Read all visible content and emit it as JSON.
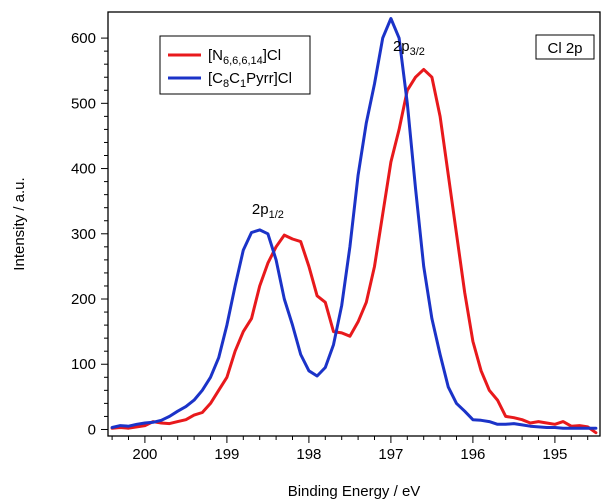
{
  "chart_data": {
    "type": "line",
    "xlabel": "Binding Energy / eV",
    "ylabel": "Intensity / a.u.",
    "xlim": [
      200.45,
      194.45
    ],
    "ylim": [
      -10,
      640
    ],
    "x_ticks": [
      200,
      199,
      198,
      197,
      196,
      195
    ],
    "y_ticks": [
      0,
      100,
      200,
      300,
      400,
      500,
      600
    ],
    "x_direction": "reversed",
    "grid": false,
    "legend_position": "top-left",
    "series": [
      {
        "name": "[N6,6,6,14]Cl",
        "name_main": "[N",
        "name_sub": "6,6,6,14",
        "name_tail": "]Cl",
        "color": "#e8191c",
        "x": [
          200.4,
          200.3,
          200.2,
          200.1,
          200.0,
          199.9,
          199.8,
          199.7,
          199.6,
          199.5,
          199.4,
          199.3,
          199.2,
          199.1,
          199.0,
          198.9,
          198.8,
          198.7,
          198.6,
          198.5,
          198.4,
          198.3,
          198.2,
          198.1,
          198.0,
          197.9,
          197.8,
          197.7,
          197.6,
          197.5,
          197.4,
          197.3,
          197.2,
          197.1,
          197.0,
          196.9,
          196.8,
          196.7,
          196.6,
          196.5,
          196.4,
          196.3,
          196.2,
          196.1,
          196.0,
          195.9,
          195.8,
          195.7,
          195.6,
          195.5,
          195.4,
          195.3,
          195.2,
          195.1,
          195.0,
          194.9,
          194.8,
          194.7,
          194.6,
          194.5
        ],
        "y": [
          2,
          3,
          2,
          4,
          6,
          12,
          10,
          9,
          12,
          15,
          22,
          26,
          40,
          60,
          80,
          120,
          150,
          170,
          220,
          255,
          280,
          298,
          292,
          288,
          250,
          205,
          195,
          150,
          148,
          143,
          165,
          195,
          250,
          330,
          410,
          460,
          520,
          540,
          552,
          540,
          480,
          390,
          300,
          210,
          135,
          90,
          60,
          45,
          20,
          18,
          15,
          10,
          12,
          10,
          8,
          12,
          5,
          6,
          4,
          -5
        ]
      },
      {
        "name": "[C8C1Pyrr]Cl",
        "name_parts": [
          [
            "[C",
            ""
          ],
          [
            "8",
            "sub"
          ],
          [
            "C",
            ""
          ],
          [
            "1",
            "sub"
          ],
          [
            "Pyrr]Cl",
            ""
          ]
        ],
        "color": "#1b33c8",
        "x": [
          200.4,
          200.3,
          200.2,
          200.1,
          200.0,
          199.9,
          199.8,
          199.7,
          199.6,
          199.5,
          199.4,
          199.3,
          199.2,
          199.1,
          199.0,
          198.9,
          198.8,
          198.7,
          198.6,
          198.5,
          198.4,
          198.3,
          198.2,
          198.1,
          198.0,
          197.9,
          197.8,
          197.7,
          197.6,
          197.5,
          197.4,
          197.3,
          197.2,
          197.1,
          197.0,
          196.9,
          196.8,
          196.7,
          196.6,
          196.5,
          196.4,
          196.3,
          196.2,
          196.1,
          196.0,
          195.9,
          195.8,
          195.7,
          195.6,
          195.5,
          195.4,
          195.3,
          195.2,
          195.1,
          195.0,
          194.9,
          194.8,
          194.7,
          194.6,
          194.5
        ],
        "y": [
          3,
          6,
          5,
          8,
          10,
          11,
          14,
          20,
          28,
          35,
          45,
          60,
          80,
          110,
          160,
          220,
          275,
          302,
          306,
          300,
          260,
          200,
          160,
          115,
          90,
          82,
          95,
          130,
          190,
          280,
          390,
          470,
          530,
          600,
          630,
          600,
          500,
          370,
          250,
          170,
          115,
          65,
          40,
          28,
          15,
          14,
          12,
          8,
          8,
          9,
          7,
          5,
          4,
          3,
          3,
          2,
          2,
          2,
          2,
          2
        ]
      }
    ],
    "annotations": [
      {
        "main": "2p",
        "sub": "1/2",
        "x": 198.5,
        "y": 330
      },
      {
        "main": "2p",
        "sub": "3/2",
        "x": 196.78,
        "y": 580
      }
    ],
    "label_box": "Cl 2p"
  }
}
